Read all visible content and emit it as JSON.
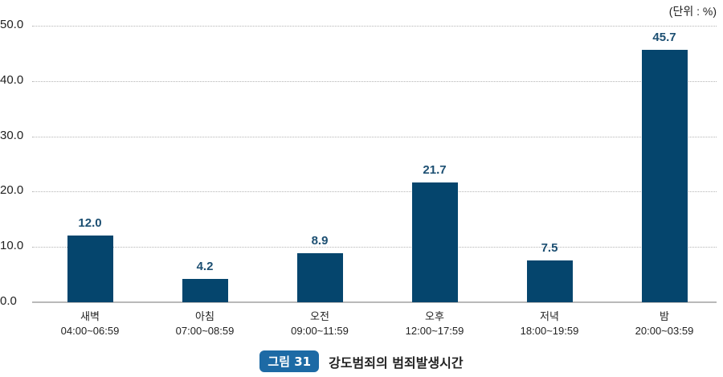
{
  "chart_data": {
    "type": "bar",
    "title": "강도범죄의 범죄발생시간",
    "figure_label": "그림 31",
    "unit": "(단위 : %)",
    "categories": [
      "새벽",
      "아침",
      "오전",
      "오후",
      "저녁",
      "밤"
    ],
    "sublabels": [
      "04:00~06:59",
      "07:00~08:59",
      "09:00~11:59",
      "12:00~17:59",
      "18:00~19:59",
      "20:00~03:59"
    ],
    "values": [
      12.0,
      4.2,
      8.9,
      21.7,
      7.5,
      45.7
    ],
    "value_labels": [
      "12.0",
      "4.2",
      "8.9",
      "21.7",
      "7.5",
      "45.7"
    ],
    "yticks": [
      "0.0",
      "10.0",
      "20.0",
      "30.0",
      "40.0",
      "50.0"
    ],
    "ylim": [
      0,
      50
    ],
    "xlabel": "",
    "ylabel": "",
    "grid": true,
    "bar_color": "#05456d",
    "label_color": "#1c4f72",
    "badge_color": "#1d6aa5"
  }
}
